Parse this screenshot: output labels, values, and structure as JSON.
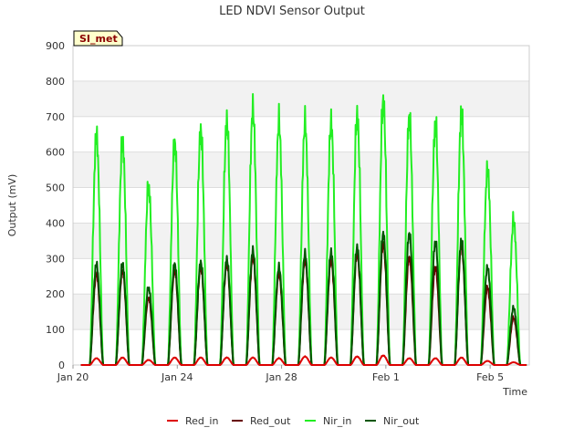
{
  "chart_data": {
    "type": "line",
    "title": "LED NDVI Sensor Output",
    "xlabel": "Time",
    "ylabel": "Output (mV)",
    "ylim": [
      0,
      900
    ],
    "yticks": [
      0,
      100,
      200,
      300,
      400,
      500,
      600,
      700,
      800,
      900
    ],
    "xlim_days": [
      20,
      37.5
    ],
    "xticks": [
      {
        "day": 20,
        "label": "Jan 20"
      },
      {
        "day": 24,
        "label": "Jan 24"
      },
      {
        "day": 28,
        "label": "Jan 28"
      },
      {
        "day": 32,
        "label": "Feb 1"
      },
      {
        "day": 36,
        "label": "Feb 5"
      }
    ],
    "badge": "SI_met",
    "grid": "horizontal bands",
    "legend_position": "bottom",
    "daily_peaks": {
      "days": [
        "Jan 21",
        "Jan 22",
        "Jan 23",
        "Jan 24",
        "Jan 25",
        "Jan 26",
        "Jan 27",
        "Jan 28",
        "Jan 29",
        "Jan 30",
        "Jan 31",
        "Feb 1",
        "Feb 2",
        "Feb 3",
        "Feb 4",
        "Feb 5",
        "Feb 6"
      ],
      "center_day": [
        20.9,
        21.9,
        22.9,
        23.9,
        24.9,
        25.9,
        26.9,
        27.9,
        28.9,
        29.9,
        30.9,
        31.9,
        32.9,
        33.9,
        34.9,
        35.9,
        36.9
      ]
    },
    "series": [
      {
        "name": "Red_in",
        "color": "#dd0000",
        "peaks": [
          20,
          22,
          15,
          22,
          22,
          22,
          22,
          20,
          25,
          22,
          25,
          28,
          20,
          20,
          22,
          12,
          8
        ]
      },
      {
        "name": "Red_out",
        "color": "#660000",
        "peaks": [
          270,
          280,
          200,
          280,
          290,
          300,
          320,
          270,
          310,
          310,
          330,
          360,
          320,
          290,
          355,
          230,
          140
        ]
      },
      {
        "name": "Nir_in",
        "color": "#22ee22",
        "peaks": [
          700,
          680,
          545,
          680,
          715,
          745,
          780,
          740,
          738,
          740,
          762,
          805,
          757,
          733,
          767,
          595,
          440
        ]
      },
      {
        "name": "Nir_out",
        "color": "#005500",
        "peaks": [
          300,
          300,
          230,
          300,
          305,
          315,
          340,
          290,
          330,
          335,
          350,
          390,
          390,
          365,
          370,
          290,
          170
        ]
      }
    ]
  }
}
